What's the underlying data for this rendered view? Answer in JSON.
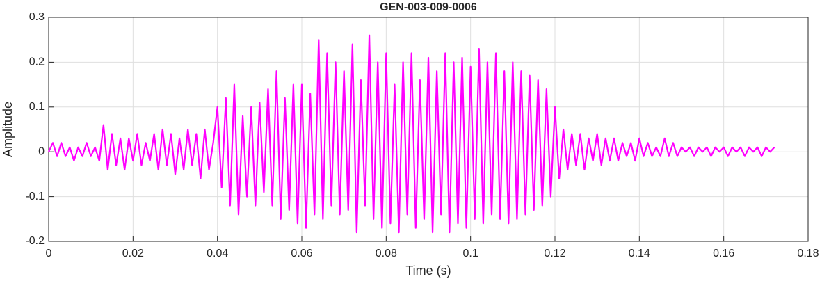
{
  "chart_data": {
    "type": "line",
    "title": "GEN-003-009-0006",
    "x_label": "Time (s)",
    "y_label": "Amplitude",
    "color": "#ff00ff",
    "grid": true,
    "xlim": [
      0,
      0.18
    ],
    "xticks": [
      0,
      0.02,
      0.04,
      0.06,
      0.08,
      0.1,
      0.12,
      0.14,
      0.16,
      0.18
    ],
    "ylim": [
      -0.2,
      0.3
    ],
    "yticks": [
      -0.2,
      -0.1,
      0,
      0.1,
      0.2,
      0.3
    ],
    "x": [
      0,
      0.001,
      0.002,
      0.003,
      0.004,
      0.005,
      0.006,
      0.007,
      0.008,
      0.009,
      0.01,
      0.011,
      0.012,
      0.013,
      0.014,
      0.015,
      0.016,
      0.017,
      0.018,
      0.019,
      0.02,
      0.021,
      0.022,
      0.023,
      0.024,
      0.025,
      0.026,
      0.027,
      0.028,
      0.029,
      0.03,
      0.031,
      0.032,
      0.033,
      0.034,
      0.035,
      0.036,
      0.037,
      0.038,
      0.039,
      0.04,
      0.041,
      0.042,
      0.043,
      0.044,
      0.045,
      0.046,
      0.047,
      0.048,
      0.049,
      0.05,
      0.051,
      0.052,
      0.053,
      0.054,
      0.055,
      0.056,
      0.057,
      0.058,
      0.059,
      0.06,
      0.061,
      0.062,
      0.063,
      0.064,
      0.065,
      0.066,
      0.067,
      0.068,
      0.069,
      0.07,
      0.071,
      0.072,
      0.073,
      0.074,
      0.075,
      0.076,
      0.077,
      0.078,
      0.079,
      0.08,
      0.081,
      0.082,
      0.083,
      0.084,
      0.085,
      0.086,
      0.087,
      0.088,
      0.089,
      0.09,
      0.091,
      0.092,
      0.093,
      0.094,
      0.095,
      0.096,
      0.097,
      0.098,
      0.099,
      0.1,
      0.101,
      0.102,
      0.103,
      0.104,
      0.105,
      0.106,
      0.107,
      0.108,
      0.109,
      0.11,
      0.111,
      0.112,
      0.113,
      0.114,
      0.115,
      0.116,
      0.117,
      0.118,
      0.119,
      0.12,
      0.121,
      0.122,
      0.123,
      0.124,
      0.125,
      0.126,
      0.127,
      0.128,
      0.129,
      0.13,
      0.131,
      0.132,
      0.133,
      0.134,
      0.135,
      0.136,
      0.137,
      0.138,
      0.139,
      0.14,
      0.141,
      0.142,
      0.143,
      0.144,
      0.145,
      0.146,
      0.147,
      0.148,
      0.149,
      0.15,
      0.151,
      0.152,
      0.153,
      0.154,
      0.155,
      0.156,
      0.157,
      0.158,
      0.159,
      0.16,
      0.161,
      0.162,
      0.163,
      0.164,
      0.165,
      0.166,
      0.167,
      0.168,
      0.169,
      0.17,
      0.171,
      0.172
    ],
    "values": [
      0,
      0.02,
      -0.01,
      0.02,
      -0.01,
      0.01,
      -0.02,
      0.01,
      -0.01,
      0.02,
      -0.01,
      0.01,
      -0.02,
      0.06,
      -0.04,
      0.04,
      -0.03,
      0.03,
      -0.04,
      0.03,
      -0.02,
      0.04,
      -0.03,
      0.02,
      -0.02,
      0.04,
      -0.04,
      0.05,
      -0.03,
      0.04,
      -0.05,
      0.03,
      -0.04,
      0.05,
      -0.03,
      0.04,
      -0.06,
      0.05,
      -0.04,
      0.02,
      0.1,
      -0.08,
      0.12,
      -0.12,
      0.15,
      -0.14,
      0.08,
      -0.1,
      0.1,
      -0.12,
      0.11,
      -0.09,
      0.14,
      -0.12,
      0.18,
      -0.15,
      0.12,
      -0.13,
      0.15,
      -0.16,
      0.15,
      -0.17,
      0.13,
      -0.14,
      0.25,
      -0.15,
      0.22,
      -0.12,
      0.2,
      -0.14,
      0.18,
      -0.13,
      0.24,
      -0.18,
      0.16,
      -0.12,
      0.26,
      -0.15,
      0.2,
      -0.17,
      0.22,
      -0.16,
      0.15,
      -0.18,
      0.2,
      -0.14,
      0.22,
      -0.17,
      0.16,
      -0.15,
      0.21,
      -0.18,
      0.18,
      -0.14,
      0.22,
      -0.18,
      0.2,
      -0.16,
      0.21,
      -0.17,
      0.19,
      -0.15,
      0.23,
      -0.16,
      0.2,
      -0.14,
      0.22,
      -0.15,
      0.18,
      -0.16,
      0.2,
      -0.15,
      0.18,
      -0.14,
      0.17,
      -0.13,
      0.16,
      -0.12,
      0.14,
      -0.1,
      0.1,
      -0.06,
      0.05,
      -0.04,
      0.04,
      -0.03,
      0.04,
      -0.04,
      0.03,
      -0.02,
      0.04,
      -0.03,
      0.03,
      -0.02,
      0.03,
      -0.02,
      0.02,
      -0.01,
      0.02,
      -0.02,
      0.03,
      -0.01,
      0.02,
      -0.01,
      0.01,
      -0.01,
      0.03,
      -0.01,
      0.02,
      -0.01,
      0.01,
      0,
      0.01,
      -0.01,
      0.01,
      0,
      0.01,
      -0.01,
      0.01,
      0,
      0.01,
      -0.01,
      0.01,
      0,
      0.01,
      -0.01,
      0.01,
      0,
      0.01,
      -0.01,
      0.01,
      0,
      0.01
    ]
  }
}
